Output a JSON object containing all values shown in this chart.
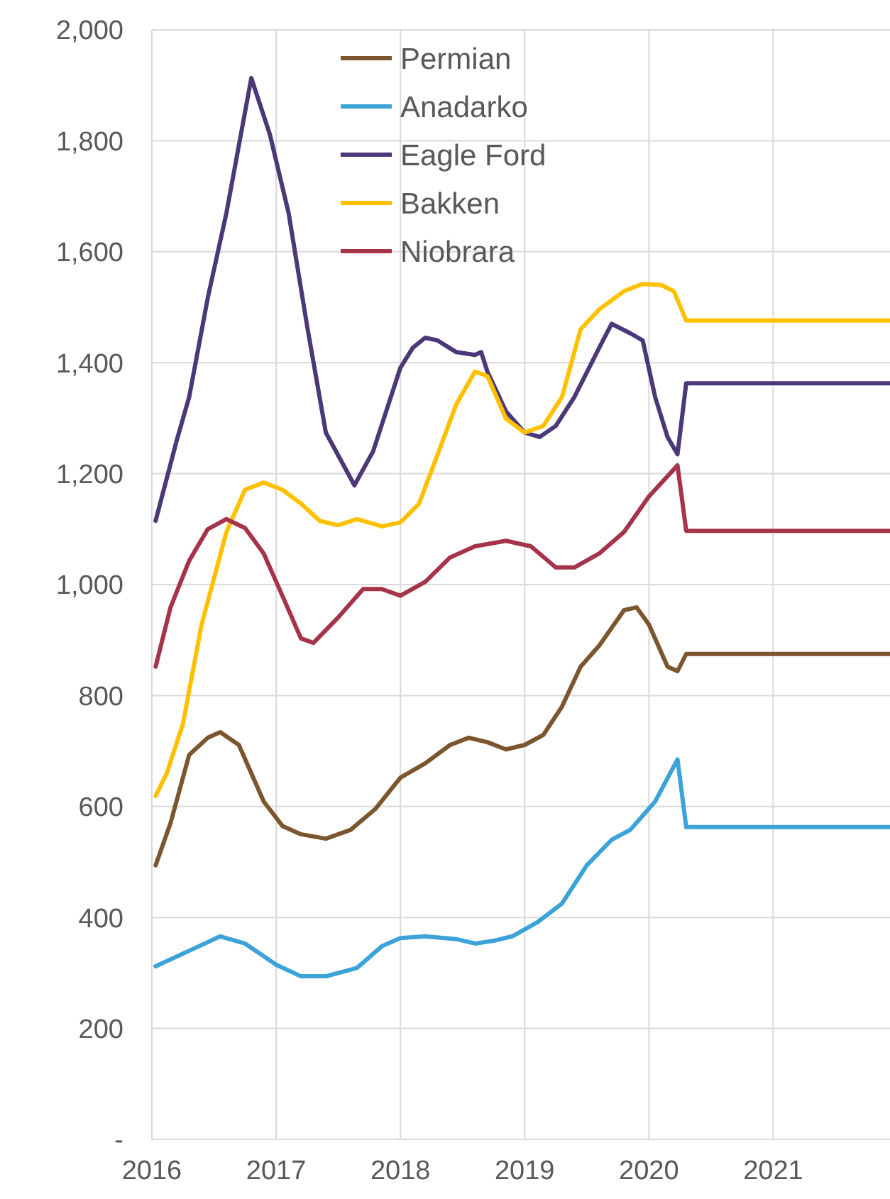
{
  "chart_data": {
    "type": "line",
    "xlim": [
      2016,
      2021.94
    ],
    "xticks": [
      2016,
      2017,
      2018,
      2019,
      2020,
      2021
    ],
    "ylim": [
      0,
      2000
    ],
    "yticks": [
      {
        "value": 0,
        "label": "-"
      },
      {
        "value": 200,
        "label": "200"
      },
      {
        "value": 400,
        "label": "400"
      },
      {
        "value": 600,
        "label": "600"
      },
      {
        "value": 800,
        "label": "800"
      },
      {
        "value": 1000,
        "label": "1,000"
      },
      {
        "value": 1200,
        "label": "1,200"
      },
      {
        "value": 1400,
        "label": "1,400"
      },
      {
        "value": 1600,
        "label": "1,600"
      },
      {
        "value": 1800,
        "label": "1,800"
      },
      {
        "value": 2000,
        "label": "2,000"
      }
    ],
    "grid": true,
    "legend": "top",
    "line_style": "solid",
    "series": [
      {
        "name": "Permian",
        "color": "#7b552e",
        "x": [
          2016.03,
          2016.15,
          2016.3,
          2016.45,
          2016.55,
          2016.7,
          2016.9,
          2017.05,
          2017.2,
          2017.4,
          2017.6,
          2017.8,
          2018.0,
          2018.2,
          2018.4,
          2018.55,
          2018.7,
          2018.85,
          2019.0,
          2019.15,
          2019.3,
          2019.45,
          2019.6,
          2019.8,
          2019.9,
          2020.0,
          2020.15,
          2020.23,
          2020.3,
          2021.94
        ],
        "values": [
          494,
          570,
          693,
          724,
          734,
          711,
          609,
          565,
          550,
          542,
          558,
          596,
          652,
          678,
          711,
          724,
          716,
          703,
          711,
          729,
          780,
          852,
          890,
          954,
          959,
          928,
          852,
          844,
          875,
          875
        ]
      },
      {
        "name": "Anadarko",
        "color": "#3ba3d8",
        "x": [
          2016.03,
          2016.3,
          2016.55,
          2016.75,
          2017.0,
          2017.2,
          2017.4,
          2017.65,
          2017.85,
          2018.0,
          2018.2,
          2018.45,
          2018.6,
          2018.75,
          2018.9,
          2019.1,
          2019.3,
          2019.5,
          2019.7,
          2019.85,
          2020.05,
          2020.23,
          2020.3,
          2021.94
        ],
        "values": [
          312,
          340,
          366,
          353,
          315,
          294,
          294,
          309,
          348,
          363,
          366,
          361,
          353,
          358,
          366,
          391,
          425,
          494,
          540,
          558,
          609,
          685,
          563,
          563
        ]
      },
      {
        "name": "Eagle Ford",
        "color": "#4b3878",
        "x": [
          2016.03,
          2016.2,
          2016.3,
          2016.45,
          2016.6,
          2016.8,
          2016.95,
          2017.1,
          2017.25,
          2017.4,
          2017.63,
          2017.78,
          2018.0,
          2018.1,
          2018.2,
          2018.3,
          2018.45,
          2018.6,
          2018.65,
          2018.7,
          2018.85,
          2019.0,
          2019.12,
          2019.25,
          2019.4,
          2019.6,
          2019.7,
          2019.85,
          2019.95,
          2020.05,
          2020.15,
          2020.23,
          2020.3,
          2021.94
        ],
        "values": [
          1115,
          1260,
          1338,
          1517,
          1670,
          1913,
          1811,
          1670,
          1465,
          1274,
          1179,
          1240,
          1391,
          1427,
          1445,
          1440,
          1419,
          1414,
          1419,
          1384,
          1312,
          1274,
          1266,
          1286,
          1338,
          1427,
          1470,
          1453,
          1440,
          1338,
          1266,
          1235,
          1363,
          1363
        ]
      },
      {
        "name": "Bakken",
        "color": "#ffc000",
        "x": [
          2016.03,
          2016.12,
          2016.25,
          2016.4,
          2016.6,
          2016.75,
          2016.9,
          2017.05,
          2017.2,
          2017.35,
          2017.5,
          2017.65,
          2017.85,
          2018.0,
          2018.15,
          2018.3,
          2018.45,
          2018.6,
          2018.7,
          2018.85,
          2019.0,
          2019.15,
          2019.3,
          2019.45,
          2019.6,
          2019.8,
          2019.95,
          2020.1,
          2020.2,
          2020.3,
          2021.94
        ],
        "values": [
          619,
          660,
          749,
          928,
          1095,
          1171,
          1184,
          1171,
          1146,
          1115,
          1107,
          1118,
          1105,
          1112,
          1146,
          1235,
          1325,
          1384,
          1376,
          1299,
          1274,
          1286,
          1338,
          1460,
          1496,
          1529,
          1542,
          1540,
          1529,
          1476,
          1476
        ]
      },
      {
        "name": "Niobrara",
        "color": "#a5334a",
        "x": [
          2016.03,
          2016.15,
          2016.3,
          2016.45,
          2016.6,
          2016.75,
          2016.9,
          2017.05,
          2017.2,
          2017.3,
          2017.5,
          2017.7,
          2017.85,
          2018.0,
          2018.2,
          2018.4,
          2018.6,
          2018.85,
          2019.05,
          2019.25,
          2019.4,
          2019.6,
          2019.8,
          2020.0,
          2020.23,
          2020.3,
          2021.94
        ],
        "values": [
          852,
          959,
          1043,
          1100,
          1118,
          1102,
          1056,
          980,
          903,
          895,
          941,
          992,
          992,
          980,
          1005,
          1049,
          1069,
          1079,
          1069,
          1031,
          1031,
          1056,
          1095,
          1159,
          1215,
          1097,
          1097
        ]
      }
    ]
  }
}
